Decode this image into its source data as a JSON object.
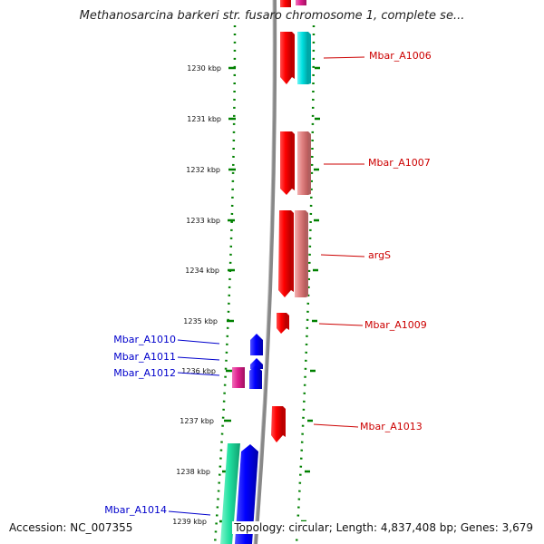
{
  "title": "Methanosarcina barkeri str. fusaro chromosome 1, complete se...",
  "accession": "Accession: NC_007355",
  "summary": "Topology: circular; Length: 4,837,408 bp; Genes: 3,679",
  "colors": {
    "forward_red": "#ff0000",
    "forward_pink": "#e08080",
    "forward_cyan": "#00e0e0",
    "reverse_blue": "#0000ff",
    "reverse_magenta": "#e0208f",
    "reverse_green": "#20e0a0",
    "backbone": "#888888",
    "ruler": "#008000",
    "label_right": "#cc0000",
    "label_left": "#0000cc"
  },
  "ticks": [
    {
      "label": "1230 kbp"
    },
    {
      "label": "1231 kbp"
    },
    {
      "label": "1232 kbp"
    },
    {
      "label": "1233 kbp"
    },
    {
      "label": "1234 kbp"
    },
    {
      "label": "1235 kbp"
    },
    {
      "label": "1236 kbp"
    },
    {
      "label": "1237 kbp"
    },
    {
      "label": "1238 kbp"
    },
    {
      "label": "1239 kbp"
    }
  ],
  "gene_labels_right": [
    "Mbar_A1006",
    "Mbar_A1007",
    "argS",
    "Mbar_A1009",
    "Mbar_A1013"
  ],
  "gene_labels_left": [
    "Mbar_A1010",
    "Mbar_A1011",
    "Mbar_A1012",
    "Mbar_A1014"
  ]
}
